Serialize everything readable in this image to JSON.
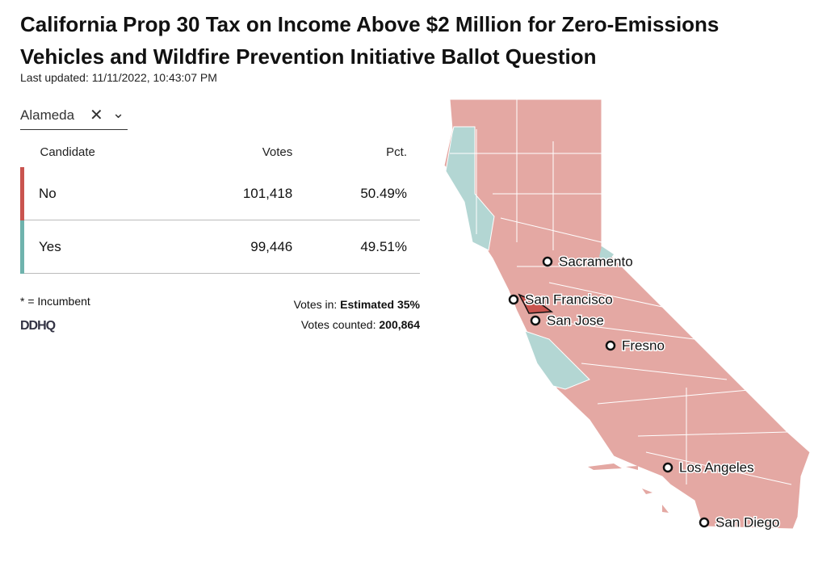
{
  "header": {
    "title": "California Prop 30 Tax on Income Above $2 Million for Zero-Emissions Vehicles and Wildfire Prevention Initiative Ballot Question",
    "updated": "Last updated: 11/11/2022, 10:43:07 PM"
  },
  "selector": {
    "county": "Alameda"
  },
  "table": {
    "columns": [
      "Candidate",
      "Votes",
      "Pct."
    ],
    "rows": [
      {
        "name": "No",
        "votes": "101,418",
        "pct": "50.49%",
        "color": "#c9544f"
      },
      {
        "name": "Yes",
        "votes": "99,446",
        "pct": "49.51%",
        "color": "#6fb3ad"
      }
    ]
  },
  "footer": {
    "note": "* = Incumbent",
    "logo": "DDHQ",
    "votes_in_label": "Votes in:",
    "votes_in_value": "Estimated 35%",
    "counted_label": "Votes counted:",
    "counted_value": "200,864"
  },
  "map": {
    "cities": [
      "Sacramento",
      "San Francisco",
      "San Jose",
      "Fresno",
      "Los Angeles",
      "San Diego"
    ]
  }
}
